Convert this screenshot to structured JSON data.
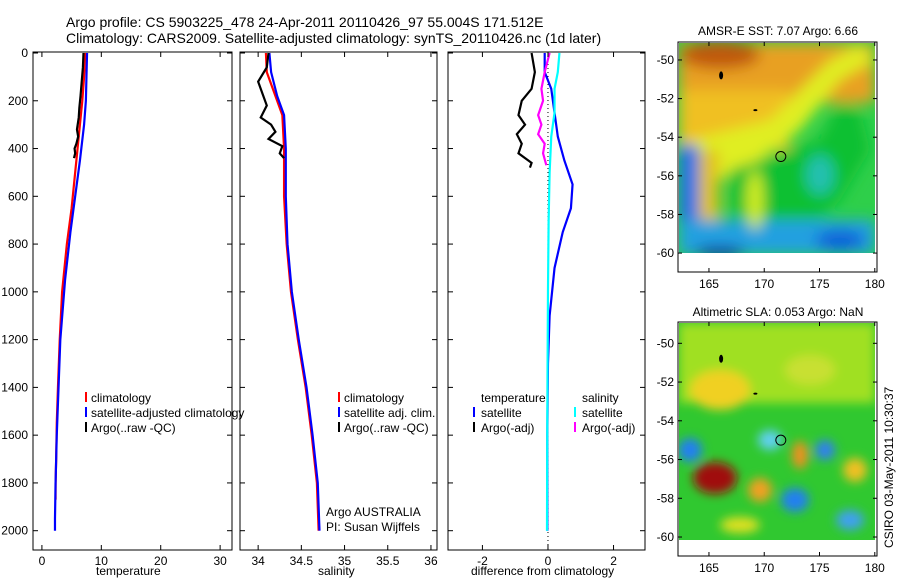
{
  "title": {
    "line1": "Argo profile: CS 5903225_478 24-Apr-2011 20110426_97 55.004S 171.512E",
    "line2": "Climatology: CARS2009. Satellite-adjusted climatology: synTS_20110426.nc (1d later)"
  },
  "side_label": "CSIRO 03-May-2011 10:30:37",
  "colors": {
    "climatology": "#ff0000",
    "satellite": "#0000ff",
    "argo": "#000000",
    "sal_sat": "#00ffff",
    "sal_argo": "#ff00ff"
  },
  "chart_data": [
    {
      "type": "line",
      "title": "",
      "xlabel": "temperature",
      "ylabel": "",
      "xlim": [
        -1.5,
        32
      ],
      "ylim": [
        0,
        2085
      ],
      "y_inverted": true,
      "xticks": [
        0,
        10,
        20,
        30
      ],
      "yticks": [
        0,
        200,
        400,
        600,
        800,
        1000,
        1200,
        1400,
        1600,
        1800,
        2000
      ],
      "legend": [
        "climatology",
        "satellite-adjusted climatology",
        "Argo(..raw -QC)"
      ],
      "series": [
        {
          "name": "climatology",
          "color": "#ff0000",
          "x": [
            7.3,
            7.1,
            6.8,
            6.4,
            5.8,
            5.0,
            4.2,
            3.4,
            3.0,
            2.7,
            2.5,
            2.4,
            2.3,
            2.3
          ],
          "y": [
            0,
            100,
            200,
            300,
            450,
            650,
            800,
            1000,
            1200,
            1400,
            1550,
            1700,
            1800,
            1870
          ]
        },
        {
          "name": "satellite-adjusted climatology",
          "color": "#0000ff",
          "x": [
            7.6,
            7.5,
            7.4,
            7.1,
            6.4,
            5.6,
            4.8,
            3.9,
            3.1,
            2.8,
            2.5,
            2.3,
            2.2,
            2.2
          ],
          "y": [
            0,
            100,
            200,
            300,
            450,
            600,
            750,
            950,
            1200,
            1400,
            1600,
            1800,
            1950,
            2000
          ]
        },
        {
          "name": "Argo(..raw -QC)",
          "color": "#000000",
          "x": [
            7.0,
            6.9,
            6.7,
            6.5,
            6.3,
            6.2,
            5.9,
            6.1,
            5.8,
            5.5,
            5.6,
            5.4
          ],
          "y": [
            0,
            60,
            120,
            180,
            230,
            270,
            320,
            350,
            380,
            400,
            420,
            440
          ]
        }
      ]
    },
    {
      "type": "line",
      "title": "",
      "xlabel": "salinity",
      "ylabel": "",
      "xlim": [
        33.79,
        36.07
      ],
      "ylim": [
        0,
        2085
      ],
      "y_inverted": true,
      "xticks": [
        34,
        34.5,
        35,
        35.5,
        36
      ],
      "yticks": [
        0,
        200,
        400,
        600,
        800,
        1000,
        1200,
        1400,
        1600,
        1800,
        2000
      ],
      "legend": [
        "climatology",
        "satellite adj. clim.",
        "Argo(..raw -QC)"
      ],
      "annotation": [
        "Argo AUSTRALIA",
        "PI: Susan Wijffels"
      ],
      "series": [
        {
          "name": "climatology",
          "color": "#ff0000",
          "x": [
            34.09,
            34.1,
            34.2,
            34.28,
            34.3,
            34.3,
            34.33,
            34.38,
            34.46,
            34.55,
            34.62,
            34.68,
            34.7
          ],
          "y": [
            0,
            80,
            180,
            260,
            400,
            600,
            800,
            1000,
            1200,
            1400,
            1600,
            1800,
            2000
          ]
        },
        {
          "name": "satellite adj. clim.",
          "color": "#0000ff",
          "x": [
            34.13,
            34.15,
            34.22,
            34.3,
            34.32,
            34.32,
            34.34,
            34.39,
            34.47,
            34.56,
            34.63,
            34.69,
            34.71
          ],
          "y": [
            0,
            80,
            180,
            260,
            400,
            600,
            800,
            1000,
            1200,
            1400,
            1600,
            1800,
            2000
          ]
        },
        {
          "name": "Argo(..raw -QC)",
          "color": "#000000",
          "x": [
            34.12,
            34.1,
            34.0,
            34.05,
            34.1,
            34.03,
            34.15,
            34.2,
            34.12,
            34.28,
            34.25,
            34.3
          ],
          "y": [
            0,
            60,
            120,
            170,
            220,
            270,
            300,
            330,
            360,
            390,
            420,
            440
          ]
        }
      ]
    },
    {
      "type": "line",
      "title": "",
      "xlabel": "difference from climatology",
      "ylabel": "",
      "xlim": [
        -3.05,
        2.96
      ],
      "ylim": [
        0,
        2085
      ],
      "y_inverted": true,
      "xticks": [
        -2,
        0,
        2
      ],
      "yticks": [
        0,
        200,
        400,
        600,
        800,
        1000,
        1200,
        1400,
        1600,
        1800,
        2000
      ],
      "legend": {
        "temperature": [
          "satellite",
          "Argo(-adj)"
        ],
        "salinity": [
          "satellite",
          "Argo(-adj)"
        ],
        "headers": [
          "temperature",
          "salinity"
        ]
      },
      "series": [
        {
          "name": "temperature satellite",
          "color": "#0000ff",
          "x": [
            -0.1,
            -0.1,
            0.1,
            0.2,
            0.3,
            0.5,
            0.75,
            0.7,
            0.45,
            0.2,
            0.05,
            0,
            -0.02,
            -0.02
          ],
          "y": [
            0,
            80,
            150,
            250,
            350,
            450,
            550,
            650,
            750,
            900,
            1100,
            1300,
            1600,
            2000
          ]
        },
        {
          "name": "salinity satellite",
          "color": "#00ffff",
          "x": [
            0.35,
            0.3,
            0.2,
            0.2,
            0.1,
            0.05,
            0.02,
            0,
            -0.02,
            -0.03
          ],
          "y": [
            0,
            80,
            150,
            250,
            350,
            500,
            700,
            1000,
            1500,
            2000
          ]
        },
        {
          "name": "temperature Argo(-adj)",
          "color": "#000000",
          "x": [
            -0.5,
            -0.4,
            -0.5,
            -0.8,
            -0.9,
            -0.7,
            -0.95,
            -0.8,
            -0.9,
            -0.5,
            -0.55
          ],
          "y": [
            0,
            80,
            150,
            200,
            260,
            300,
            340,
            380,
            420,
            460,
            480
          ]
        },
        {
          "name": "salinity Argo(-adj)",
          "color": "#ff00ff",
          "x": [
            0.05,
            -0.1,
            -0.2,
            -0.15,
            -0.3,
            -0.2,
            -0.3,
            -0.1,
            -0.15,
            -0.05
          ],
          "y": [
            0,
            80,
            150,
            200,
            260,
            300,
            340,
            380,
            420,
            470
          ]
        }
      ]
    },
    {
      "type": "heatmap",
      "title": "AMSR-E SST: 7.07 Argo: 6.66",
      "xlim": [
        162.2,
        180.2
      ],
      "ylim": [
        -60.98,
        -49.07
      ],
      "xticks": [
        165,
        170,
        175,
        180
      ],
      "yticks": [
        -50,
        -52,
        -54,
        -56,
        -58,
        -60
      ],
      "marker": {
        "lon": 171.5,
        "lat": -55
      }
    },
    {
      "type": "heatmap",
      "title": "Altimetric SLA: 0.053 Argo: NaN",
      "xlim": [
        162.2,
        180.2
      ],
      "ylim": [
        -60.98,
        -48.9
      ],
      "xticks": [
        165,
        170,
        175,
        180
      ],
      "yticks": [
        -50,
        -52,
        -54,
        -56,
        -58,
        -60
      ],
      "marker": {
        "lon": 171.5,
        "lat": -55
      }
    }
  ]
}
